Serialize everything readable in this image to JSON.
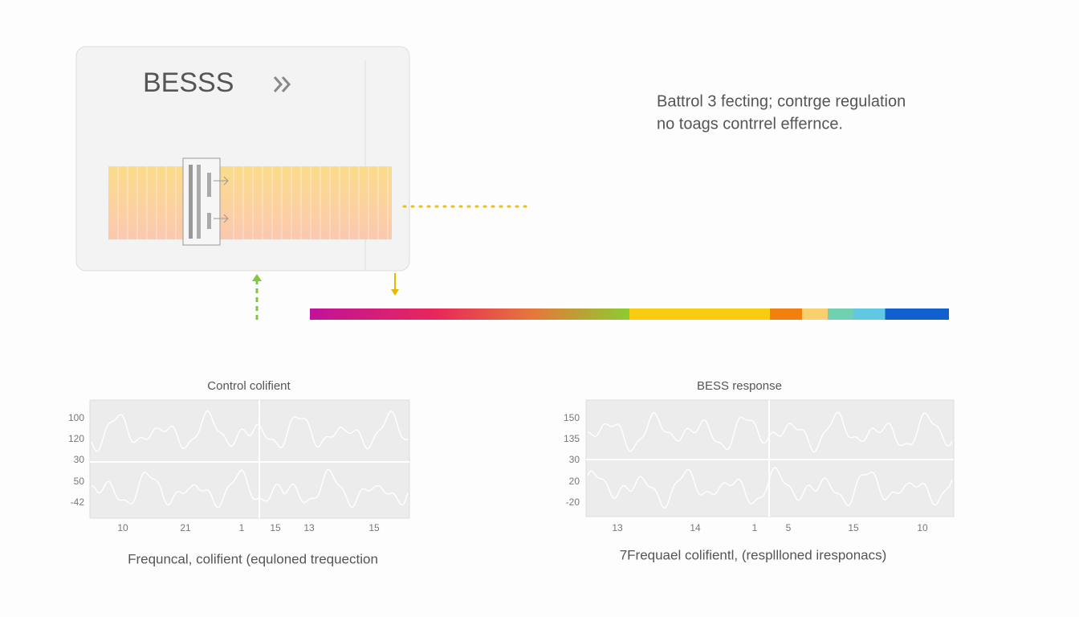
{
  "panel": {
    "title": "BESSS"
  },
  "note": [
    "Battrol 3 fecting; contrge regulation",
    "no toags contrrel effernce."
  ],
  "charts": [
    {
      "title": "Control colifient",
      "y_labels": [
        "100",
        "120",
        "30",
        "50",
        "-42"
      ],
      "x_labels": [
        "10",
        "21",
        "1",
        "15",
        "13",
        "15"
      ],
      "caption": "Frequncal, colifient (equloned trequection"
    },
    {
      "title": "BESS response",
      "y_labels": [
        "150",
        "135",
        "30",
        "20",
        "-20"
      ],
      "x_labels": [
        "13",
        "14",
        "1",
        "5",
        "15",
        "10"
      ],
      "caption": "7Frequael colifientl, (respllloned iresponacs)"
    }
  ]
}
